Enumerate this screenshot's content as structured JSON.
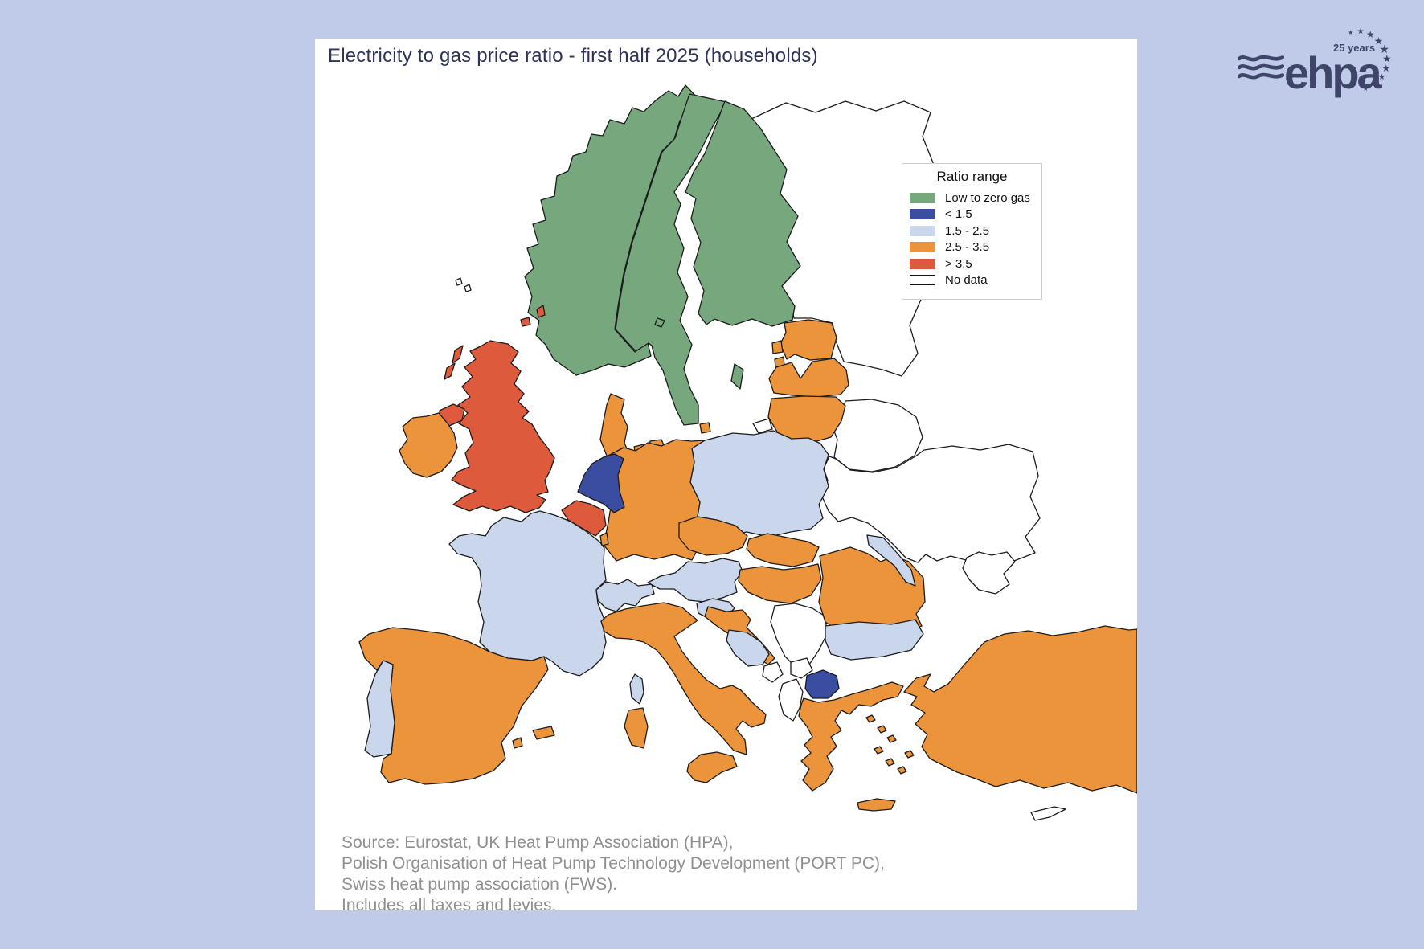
{
  "panel": {
    "title": "Electricity to gas price ratio - first half 2025 (households)"
  },
  "legend": {
    "title": "Ratio range",
    "items": [
      {
        "label": "Low to zero gas",
        "color": "#77a77d"
      },
      {
        "label": "< 1.5",
        "color": "#3a4da0"
      },
      {
        "label": "1.5 - 2.5",
        "color": "#c9d6ec"
      },
      {
        "label": "2.5 - 3.5",
        "color": "#eb943c"
      },
      {
        "label": "> 3.5",
        "color": "#dd5a3c"
      },
      {
        "label": "No data",
        "color": "#ffffff"
      }
    ]
  },
  "source_lines": [
    "Source: Eurostat, UK Heat Pump Association (HPA),",
    "Polish Organisation of Heat Pump Technology Development (PORT PC),",
    "Swiss heat pump association (FWS).",
    "Includes all taxes and levies."
  ],
  "logo": {
    "text": "ehpa",
    "years": "25 years",
    "color": "#3e4569",
    "icons": [
      "waves-icon",
      "eu-stars-icon"
    ]
  },
  "colors": {
    "background": "#bfcbe8",
    "panel": "#ffffff",
    "title_text": "#2e3359",
    "source_text": "#909090",
    "border": "#1c1c1c"
  },
  "chart_data": {
    "type": "heatmap",
    "subtype": "choropleth-map",
    "region": "Europe",
    "title": "Electricity to gas price ratio - first half 2025 (households)",
    "legend_title": "Ratio range",
    "categories": [
      "Low to zero gas",
      "< 1.5",
      "1.5 - 2.5",
      "2.5 - 3.5",
      "> 3.5",
      "No data"
    ],
    "category_colors": {
      "Low to zero gas": "#77a77d",
      "< 1.5": "#3a4da0",
      "1.5 - 2.5": "#c9d6ec",
      "2.5 - 3.5": "#eb943c",
      "> 3.5": "#dd5a3c",
      "No data": "#ffffff"
    },
    "country_values": {
      "norway": "Low to zero gas",
      "sweden": "Low to zero gas",
      "finland": "Low to zero gas",
      "netherlands": "< 1.5",
      "north_macedonia": "< 1.5",
      "france": "1.5 - 2.5",
      "portugal": "1.5 - 2.5",
      "switzerland": "1.5 - 2.5",
      "austria": "1.5 - 2.5",
      "poland": "1.5 - 2.5",
      "slovenia": "1.5 - 2.5",
      "bosnia_herzegovina": "1.5 - 2.5",
      "bulgaria": "1.5 - 2.5",
      "moldova": "1.5 - 2.5",
      "denmark": "2.5 - 3.5",
      "estonia": "2.5 - 3.5",
      "latvia": "2.5 - 3.5",
      "lithuania": "2.5 - 3.5",
      "germany": "2.5 - 3.5",
      "luxembourg": "2.5 - 3.5",
      "ireland": "2.5 - 3.5",
      "spain": "2.5 - 3.5",
      "italy": "2.5 - 3.5",
      "czechia": "2.5 - 3.5",
      "slovakia": "2.5 - 3.5",
      "hungary": "2.5 - 3.5",
      "croatia": "2.5 - 3.5",
      "romania": "2.5 - 3.5",
      "greece": "2.5 - 3.5",
      "turkey": "2.5 - 3.5",
      "united_kingdom": "> 3.5",
      "belgium": "> 3.5",
      "serbia": "No data",
      "montenegro": "No data",
      "kosovo": "No data",
      "albania": "No data",
      "cyprus": "No data",
      "russia": "No data",
      "belarus": "No data",
      "ukraine": "No data",
      "faroe": "No data"
    }
  }
}
